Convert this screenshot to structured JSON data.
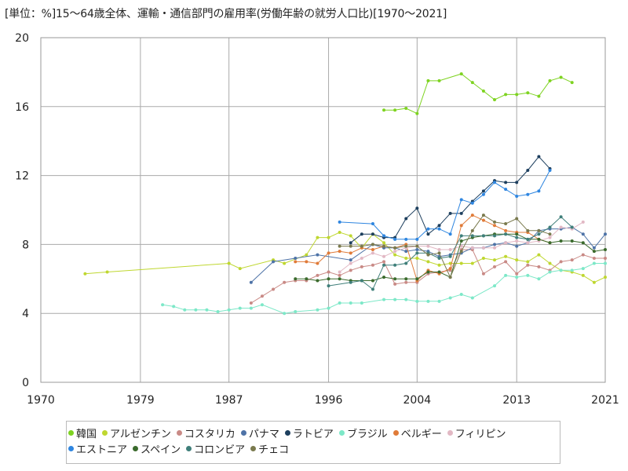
{
  "chart_data": {
    "type": "line",
    "title": "[単位：%]15～64歳全体、運輸・通信部門の雇用率(労働年齢の就労人口比)[1970～2021]",
    "xlabel": "",
    "ylabel": "",
    "xlim": [
      1970,
      2021
    ],
    "ylim": [
      0,
      20
    ],
    "x_ticks": [
      1970,
      1979,
      1987,
      1996,
      2004,
      2013,
      2021
    ],
    "y_ticks": [
      0,
      4,
      8,
      12,
      16,
      20
    ],
    "grid": true,
    "legend_position": "bottom",
    "series": [
      {
        "name": "韓国",
        "color": "#7ed321",
        "x": [
          2001,
          2002,
          2003,
          2004,
          2005,
          2006,
          2008,
          2009,
          2010,
          2011,
          2012,
          2013,
          2014,
          2015,
          2016,
          2017,
          2018
        ],
        "y": [
          15.8,
          15.8,
          15.9,
          15.6,
          17.5,
          17.5,
          17.9,
          17.4,
          16.9,
          16.4,
          16.7,
          16.7,
          16.8,
          16.6,
          17.5,
          17.7,
          17.4
        ]
      },
      {
        "name": "アルゼンチン",
        "color": "#bfd730",
        "x": [
          1974,
          1976,
          1987,
          1988,
          1991,
          1992,
          1994,
          1995,
          1996,
          1997,
          1998,
          1999,
          2000,
          2001,
          2002,
          2003,
          2004,
          2005,
          2006,
          2007,
          2008,
          2009,
          2010,
          2011,
          2012,
          2013,
          2014,
          2015,
          2016,
          2017,
          2018,
          2019,
          2020,
          2021
        ],
        "y": [
          6.3,
          6.4,
          6.9,
          6.6,
          7.1,
          6.9,
          7.4,
          8.4,
          8.4,
          8.7,
          8.5,
          7.8,
          8.6,
          8.1,
          7.4,
          7.2,
          7.2,
          7.0,
          6.8,
          6.9,
          6.9,
          6.9,
          7.2,
          7.1,
          7.3,
          7.1,
          7.0,
          7.4,
          6.9,
          6.5,
          6.4,
          6.2,
          5.8,
          6.1
        ]
      },
      {
        "name": "コスタリカ",
        "color": "#c98a86",
        "x": [
          1989,
          1990,
          1991,
          1992,
          1993,
          1994,
          1995,
          1996,
          1997,
          1998,
          1999,
          2000,
          2001,
          2002,
          2003,
          2004,
          2005,
          2006,
          2007,
          2008,
          2009,
          2010,
          2011,
          2012,
          2013,
          2014,
          2015,
          2016,
          2017,
          2018,
          2019,
          2020,
          2021
        ],
        "y": [
          4.6,
          5.0,
          5.4,
          5.8,
          5.9,
          5.9,
          6.2,
          6.4,
          6.2,
          6.5,
          6.7,
          6.8,
          7.0,
          5.7,
          5.8,
          5.8,
          6.3,
          6.4,
          6.5,
          7.7,
          7.7,
          6.3,
          6.7,
          7.0,
          6.3,
          6.8,
          6.7,
          6.5,
          7.0,
          7.1,
          7.4,
          7.2,
          7.2
        ]
      },
      {
        "name": "パナマ",
        "color": "#4e73a7",
        "x": [
          1989,
          1991,
          1993,
          1995,
          1998,
          2000,
          2001,
          2002,
          2003,
          2004,
          2005,
          2006,
          2007,
          2008,
          2009,
          2010,
          2011,
          2012,
          2013,
          2014,
          2015,
          2016,
          2017,
          2018,
          2019,
          2020,
          2021
        ],
        "y": [
          5.8,
          7.0,
          7.2,
          7.4,
          7.1,
          8.0,
          7.8,
          7.8,
          7.6,
          7.7,
          7.6,
          7.3,
          7.4,
          7.5,
          7.8,
          7.8,
          8.0,
          8.1,
          7.9,
          8.1,
          8.8,
          8.9,
          8.9,
          9.0,
          8.6,
          7.8,
          8.6
        ]
      },
      {
        "name": "ラトビア",
        "color": "#1d3f5e",
        "x": [
          1998,
          1999,
          2000,
          2001,
          2002,
          2003,
          2004,
          2005,
          2006,
          2007,
          2008,
          2009,
          2010,
          2011,
          2012,
          2013,
          2014,
          2015,
          2016
        ],
        "y": [
          8.1,
          8.6,
          8.6,
          8.4,
          8.4,
          9.5,
          10.1,
          8.6,
          9.1,
          9.8,
          9.8,
          10.5,
          11.1,
          11.7,
          11.6,
          11.6,
          12.3,
          13.1,
          12.4
        ]
      },
      {
        "name": "ブラジル",
        "color": "#7de8c8",
        "x": [
          1981,
          1982,
          1983,
          1984,
          1985,
          1986,
          1987,
          1988,
          1989,
          1990,
          1992,
          1993,
          1995,
          1996,
          1997,
          1998,
          1999,
          2001,
          2002,
          2003,
          2004,
          2005,
          2006,
          2007,
          2008,
          2009,
          2011,
          2012,
          2013,
          2014,
          2015,
          2016,
          2017,
          2018,
          2019,
          2020,
          2021
        ],
        "y": [
          4.5,
          4.4,
          4.2,
          4.2,
          4.2,
          4.1,
          4.2,
          4.3,
          4.3,
          4.5,
          4.0,
          4.1,
          4.2,
          4.3,
          4.6,
          4.6,
          4.6,
          4.8,
          4.8,
          4.8,
          4.7,
          4.7,
          4.7,
          4.9,
          5.1,
          4.9,
          5.6,
          6.2,
          6.1,
          6.2,
          6.0,
          6.4,
          6.5,
          6.5,
          6.6,
          6.9,
          6.9
        ]
      },
      {
        "name": "ベルギー",
        "color": "#e07b39",
        "x": [
          1993,
          1994,
          1995,
          1996,
          1997,
          1998,
          1999,
          2000,
          2001,
          2002,
          2003,
          2004,
          2005,
          2006,
          2007,
          2008,
          2009,
          2010,
          2011,
          2012,
          2013,
          2014,
          2015,
          2016
        ],
        "y": [
          7.0,
          7.0,
          6.9,
          7.5,
          7.6,
          7.5,
          7.8,
          7.7,
          7.9,
          7.8,
          8.0,
          5.9,
          6.5,
          6.3,
          6.6,
          9.1,
          9.7,
          9.4,
          9.1,
          8.8,
          8.7,
          8.7,
          8.3,
          8.1
        ]
      },
      {
        "name": "フィリピン",
        "color": "#e2b8c4",
        "x": [
          1997,
          1998,
          1999,
          2000,
          2001,
          2002,
          2003,
          2004,
          2005,
          2006,
          2007,
          2008,
          2009,
          2010,
          2011,
          2012,
          2013,
          2014,
          2015,
          2016,
          2017,
          2018,
          2019
        ],
        "y": [
          6.4,
          6.9,
          7.2,
          7.5,
          7.3,
          7.6,
          7.8,
          7.9,
          7.9,
          7.7,
          7.7,
          7.9,
          7.8,
          7.8,
          7.8,
          8.1,
          8.2,
          8.1,
          8.2,
          8.4,
          9.0,
          8.9,
          9.3
        ]
      },
      {
        "name": "エストニア",
        "color": "#2f86e0",
        "x": [
          1997,
          2000,
          2001,
          2002,
          2003,
          2004,
          2005,
          2006,
          2007,
          2008,
          2009,
          2010,
          2011,
          2012,
          2013,
          2014,
          2015,
          2016
        ],
        "y": [
          9.3,
          9.2,
          8.5,
          8.3,
          8.3,
          8.3,
          8.9,
          8.9,
          8.6,
          10.6,
          10.4,
          10.9,
          11.6,
          11.2,
          10.8,
          10.9,
          11.1,
          12.3
        ]
      },
      {
        "name": "スペイン",
        "color": "#3a6a2c",
        "x": [
          1993,
          1994,
          1995,
          1996,
          1997,
          1998,
          1999,
          2000,
          2001,
          2002,
          2003,
          2004,
          2005,
          2006,
          2007,
          2008,
          2009,
          2010,
          2011,
          2012,
          2013,
          2014,
          2015,
          2016,
          2017,
          2018,
          2019,
          2020,
          2021
        ],
        "y": [
          6.0,
          6.0,
          5.9,
          6.0,
          6.0,
          5.9,
          5.9,
          5.9,
          6.1,
          6.0,
          6.0,
          6.0,
          6.4,
          6.4,
          6.1,
          8.2,
          8.4,
          8.5,
          8.6,
          8.6,
          8.6,
          8.3,
          8.3,
          8.1,
          8.2,
          8.2,
          8.1,
          7.6,
          7.7
        ]
      },
      {
        "name": "コロンビア",
        "color": "#3f7f7a",
        "x": [
          1996,
          1998,
          1999,
          2000,
          2001,
          2002,
          2003,
          2004,
          2005,
          2006,
          2007,
          2008,
          2009,
          2010,
          2011,
          2012,
          2013,
          2014,
          2015,
          2016,
          2017,
          2018
        ],
        "y": [
          5.6,
          5.8,
          5.9,
          5.4,
          6.8,
          6.8,
          6.9,
          7.5,
          7.5,
          7.2,
          7.3,
          8.5,
          8.5,
          8.5,
          8.5,
          8.6,
          8.4,
          8.3,
          8.6,
          9.0,
          9.6,
          9.0
        ]
      },
      {
        "name": "チェコ",
        "color": "#7a7a4e",
        "x": [
          1997,
          1998,
          1999,
          2000,
          2001,
          2002,
          2003,
          2004,
          2005,
          2006,
          2007,
          2008,
          2009,
          2010,
          2011,
          2012,
          2013,
          2014,
          2015,
          2016
        ],
        "y": [
          7.9,
          7.9,
          7.9,
          8.0,
          7.9,
          7.8,
          7.9,
          7.9,
          7.4,
          7.5,
          6.1,
          7.6,
          8.8,
          9.7,
          9.3,
          9.2,
          9.5,
          8.8,
          8.8,
          8.6
        ]
      }
    ]
  }
}
